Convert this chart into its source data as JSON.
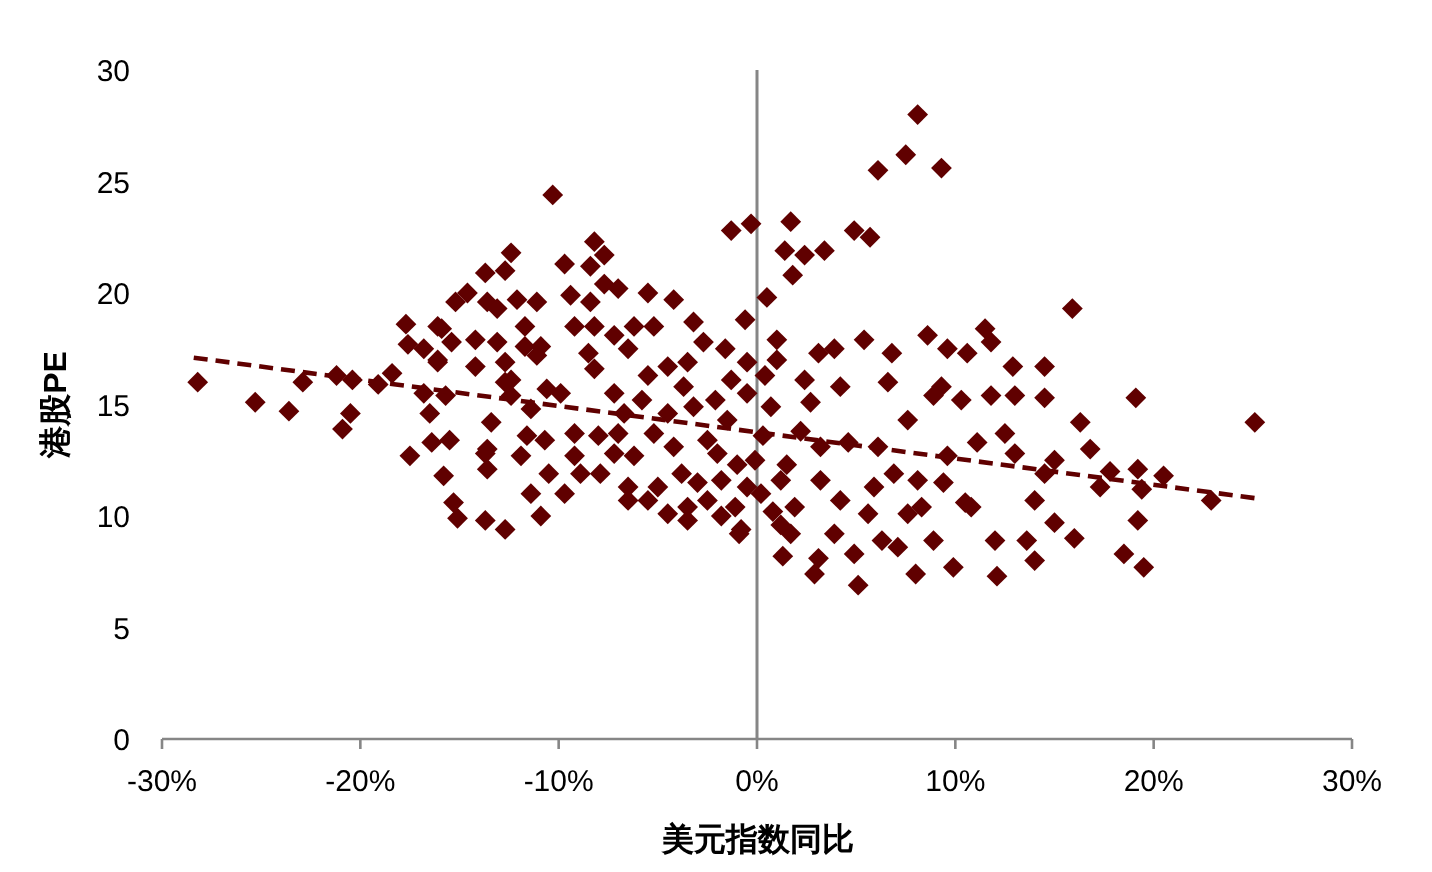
{
  "chart_data": {
    "type": "scatter",
    "xlabel": "美元指数同比",
    "ylabel": "港股PE",
    "marker": "diamond",
    "xlim": [
      -30,
      30
    ],
    "xticks": [
      {
        "value": -30,
        "label": "-30%"
      },
      {
        "value": -20,
        "label": "-20%"
      },
      {
        "value": -10,
        "label": "-10%"
      },
      {
        "value": 0,
        "label": "0%"
      },
      {
        "value": 10,
        "label": "10%"
      },
      {
        "value": 20,
        "label": "20%"
      },
      {
        "value": 30,
        "label": "30%"
      }
    ],
    "ylim": [
      0,
      30
    ],
    "yticks": [
      0,
      5,
      10,
      15,
      20,
      25,
      30
    ],
    "ref_lines": [
      {
        "axis": "x",
        "value": 0,
        "color": "#868686"
      }
    ],
    "series": [
      {
        "color": "#600000",
        "x": [
          -28.2,
          -25.3,
          -23.6,
          -22.9,
          -21.2,
          -20.9,
          -20.4,
          -20.5,
          -19.1,
          -18.4,
          -17.7,
          -17.6,
          -17.5,
          -16.8,
          -16.8,
          -16.5,
          -16.4,
          -15.8,
          -15.5,
          -15.3,
          -15.1,
          -16.1,
          -15.9,
          -15.2,
          -14.6,
          -15.4,
          -14.2,
          -14.2,
          -15.7,
          -12.4,
          -12.7,
          -13.7,
          -13.6,
          -13.1,
          -12.1,
          -11.1,
          -9.7,
          -8.2,
          -8.4,
          -7.7,
          -9.4,
          -8.4,
          -7.7,
          -7.0,
          -5.5,
          -4.2,
          -3.2,
          -1.3,
          -0.3,
          -0.6,
          -16.1,
          -16.1,
          -13.1,
          -12.7,
          -11.7,
          -11.7,
          -10.9,
          -11.1,
          -12.4,
          -12.4,
          -10.6,
          -9.9,
          -11.4,
          -9.2,
          -8.2,
          -8.5,
          -8.2,
          -7.2,
          -6.2,
          -5.2,
          -6.5,
          -7.2,
          -6.7,
          -7.0,
          -5.5,
          -4.5,
          -3.5,
          -2.7,
          -1.6,
          -0.5,
          -1.3,
          -0.5,
          -13.4,
          -12.7,
          -13.6,
          -13.7,
          -13.6,
          -13.7,
          -12.7,
          -10.9,
          -11.9,
          -11.6,
          -10.7,
          -11.4,
          -10.5,
          -9.7,
          -9.2,
          -9.2,
          -8.9,
          -7.9,
          -8.0,
          -7.2,
          -6.5,
          -6.5,
          -6.2,
          -5.2,
          -4.5,
          -4.2,
          -3.8,
          -5.0,
          -3.5,
          -2.5,
          -1.8,
          -1.1,
          -0.8,
          -2.5,
          -1.5,
          -3.2,
          -2.1,
          -3.7,
          -5.8,
          -5.5,
          -4.5,
          -3.5,
          -10.3,
          -0.9,
          8.1,
          7.5,
          6.1,
          9.3,
          1.7,
          1.4,
          2.4,
          3.4,
          1.8,
          4.9,
          5.7,
          0.5,
          15.9,
          25.1,
          19.1,
          14.5,
          14.5,
          12.9,
          13.0,
          16.3,
          16.8,
          17.8,
          19.2,
          20.5,
          22.9,
          19.4,
          19.2,
          18.5,
          19.5,
          16.0,
          15.0,
          17.3,
          14.5,
          14.0,
          13.6,
          14.0,
          12.1,
          12.0,
          9.9,
          8.0,
          5.1,
          2.9,
          3.1,
          1.3,
          4.9,
          7.1,
          8.9,
          11.1,
          10.5,
          12.5,
          13.0,
          15.0,
          11.5,
          10.6,
          8.6,
          5.4,
          3.9,
          3.1,
          1.0,
          1.0,
          9.6,
          10.3,
          9.3,
          8.9,
          11.8,
          7.6,
          6.6,
          4.2,
          2.4,
          2.7,
          0.4,
          0.7,
          3.2,
          4.6,
          6.1,
          5.9,
          6.9,
          8.1,
          8.3,
          9.4,
          9.6,
          10.8,
          5.6,
          4.2,
          3.2,
          1.9,
          1.2,
          0.2,
          -0.1,
          1.7,
          3.9,
          6.3,
          7.6,
          -1.0,
          -2.0,
          0.3,
          1.5,
          2.2,
          -0.5,
          -3.0,
          0.8,
          -1.8,
          1.2,
          11.8,
          6.8
        ],
        "values": [
          16.0,
          15.1,
          14.7,
          16.0,
          16.3,
          13.9,
          16.1,
          14.6,
          15.9,
          16.4,
          18.6,
          17.7,
          12.7,
          17.5,
          15.5,
          14.6,
          13.3,
          11.8,
          13.4,
          10.6,
          9.9,
          16.9,
          18.4,
          19.6,
          20.0,
          17.8,
          17.9,
          16.7,
          15.4,
          21.8,
          21.0,
          20.9,
          19.6,
          19.3,
          19.7,
          19.6,
          21.3,
          22.3,
          21.2,
          21.7,
          19.9,
          19.6,
          20.4,
          20.2,
          20.0,
          19.7,
          18.7,
          22.8,
          23.1,
          18.8,
          18.5,
          17.0,
          17.8,
          16.9,
          18.5,
          17.6,
          17.6,
          17.2,
          16.1,
          15.4,
          15.7,
          15.5,
          14.8,
          18.5,
          18.5,
          17.3,
          16.6,
          18.1,
          18.5,
          18.5,
          17.5,
          15.5,
          14.6,
          13.7,
          16.3,
          16.7,
          16.9,
          17.8,
          17.5,
          16.9,
          16.1,
          15.5,
          14.2,
          16.0,
          13.0,
          12.8,
          12.1,
          9.8,
          9.4,
          10.0,
          12.7,
          13.6,
          13.4,
          11.0,
          11.9,
          11.0,
          13.7,
          12.7,
          11.9,
          11.9,
          13.6,
          12.8,
          11.3,
          10.7,
          12.7,
          13.7,
          14.6,
          13.1,
          11.9,
          11.3,
          10.4,
          10.7,
          11.6,
          10.4,
          9.4,
          13.4,
          14.3,
          14.9,
          15.2,
          15.8,
          15.2,
          10.7,
          10.1,
          9.8,
          24.4,
          9.2,
          28.0,
          26.2,
          25.5,
          25.6,
          23.2,
          21.9,
          21.7,
          21.9,
          20.8,
          22.8,
          22.5,
          19.8,
          19.3,
          14.2,
          15.3,
          16.7,
          15.3,
          16.7,
          15.4,
          14.2,
          13.0,
          12.0,
          12.1,
          11.8,
          10.7,
          11.2,
          9.8,
          8.3,
          7.7,
          9.0,
          9.7,
          11.3,
          11.9,
          10.7,
          8.9,
          8.0,
          7.3,
          8.9,
          7.7,
          7.4,
          6.9,
          7.4,
          8.1,
          8.2,
          8.3,
          8.6,
          8.9,
          13.3,
          10.6,
          13.7,
          12.8,
          12.5,
          18.4,
          17.3,
          18.1,
          17.9,
          17.5,
          17.3,
          17.9,
          17.0,
          17.5,
          15.2,
          15.8,
          15.4,
          15.4,
          14.3,
          16.0,
          15.8,
          16.1,
          15.1,
          16.3,
          14.9,
          13.1,
          13.3,
          13.1,
          11.3,
          11.9,
          11.6,
          10.4,
          11.5,
          12.7,
          10.4,
          10.1,
          10.7,
          11.6,
          10.4,
          11.6,
          11.0,
          12.5,
          9.2,
          9.2,
          8.9,
          10.1,
          12.3,
          12.8,
          13.6,
          12.3,
          13.8,
          11.3,
          11.5,
          10.2,
          10.0,
          9.6,
          17.8,
          17.3
        ]
      },
      {
        "type": "line",
        "color": "#600000",
        "line_style": "dashed",
        "marker": "none",
        "x": [
          -28.4,
          25.1
        ],
        "values": [
          17.1,
          10.8
        ]
      }
    ]
  }
}
